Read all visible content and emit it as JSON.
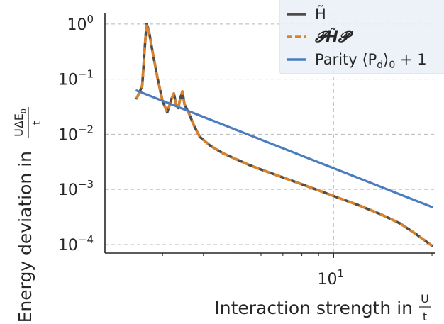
{
  "chart_data": {
    "type": "line",
    "xscale": "log",
    "yscale": "log",
    "xlim": [
      2,
      20.5
    ],
    "ylim": [
      7e-05,
      1.6
    ],
    "grid": true,
    "legend_position": "top-right",
    "xlabel": {
      "text": "Interaction strength in",
      "frac_num": "U",
      "frac_den": "t"
    },
    "ylabel": {
      "text": "Energy deviation in",
      "frac_num": "UΔE",
      "frac_num_sub": "0",
      "frac_den": "t"
    },
    "x_ticks": [
      {
        "value": 10,
        "base": "10",
        "exp": "1"
      }
    ],
    "x_minor_ticks": [
      3,
      4,
      5,
      6,
      7,
      8,
      9,
      20
    ],
    "y_ticks": [
      {
        "value": 1,
        "base": "10",
        "exp": "0"
      },
      {
        "value": 0.1,
        "base": "10",
        "exp": "−1"
      },
      {
        "value": 0.01,
        "base": "10",
        "exp": "−2"
      },
      {
        "value": 0.001,
        "base": "10",
        "exp": "−3"
      },
      {
        "value": 0.0001,
        "base": "10",
        "exp": "−4"
      }
    ],
    "series": [
      {
        "name": "H̃",
        "color": "#4d4d4d",
        "dash": "solid",
        "x": [
          2.5,
          2.6,
          2.65,
          2.68,
          2.72,
          2.8,
          2.9,
          3.0,
          3.1,
          3.2,
          3.25,
          3.3,
          3.35,
          3.4,
          3.45,
          3.5,
          3.6,
          3.75,
          3.9,
          4.2,
          4.6,
          5.0,
          5.5,
          6.0,
          7.0,
          8.0,
          9.0,
          10.0,
          12.0,
          14.0,
          16.0,
          18.0,
          20.0
        ],
        "values": [
          0.045,
          0.075,
          0.4,
          1.0,
          0.8,
          0.3,
          0.1,
          0.04,
          0.025,
          0.045,
          0.055,
          0.035,
          0.03,
          0.045,
          0.06,
          0.035,
          0.025,
          0.014,
          0.009,
          0.0062,
          0.0045,
          0.0036,
          0.0028,
          0.0023,
          0.00165,
          0.00124,
          0.00096,
          0.00076,
          0.00051,
          0.00035,
          0.00024,
          0.00015,
          9.5e-05
        ]
      },
      {
        "name": "𝓟H̃𝓟",
        "color": "#d9822b",
        "dash": "dashed",
        "x": [
          2.5,
          2.6,
          2.65,
          2.68,
          2.72,
          2.8,
          2.9,
          3.0,
          3.1,
          3.2,
          3.25,
          3.3,
          3.35,
          3.4,
          3.45,
          3.5,
          3.6,
          3.75,
          3.9,
          4.2,
          4.6,
          5.0,
          5.5,
          6.0,
          7.0,
          8.0,
          9.0,
          10.0,
          12.0,
          14.0,
          16.0,
          18.0,
          20.0
        ],
        "values": [
          0.045,
          0.075,
          0.4,
          1.0,
          0.8,
          0.3,
          0.1,
          0.04,
          0.025,
          0.045,
          0.055,
          0.035,
          0.03,
          0.045,
          0.06,
          0.035,
          0.025,
          0.014,
          0.009,
          0.0062,
          0.0045,
          0.0036,
          0.0028,
          0.0023,
          0.00165,
          0.00124,
          0.00096,
          0.00076,
          0.00051,
          0.00035,
          0.00024,
          0.00015,
          9.5e-05
        ]
      },
      {
        "name": "Parity ⟨P_d⟩₀ + 1",
        "color": "#4a7cbf",
        "dash": "solid",
        "x": [
          2.5,
          20.0
        ],
        "values": [
          0.062,
          0.00048
        ]
      }
    ],
    "legend": [
      {
        "label": "H̃",
        "color": "#4d4d4d",
        "dash": "solid"
      },
      {
        "label": "𝓟H̃𝓟",
        "color": "#d9822b",
        "dash": "dashed"
      },
      {
        "label_prefix": "Parity ⟨P",
        "label_sub": "d",
        "label_suffix": "⟩",
        "label_sub2": "0",
        "label_tail": " + 1",
        "color": "#4a7cbf",
        "dash": "solid"
      }
    ]
  }
}
